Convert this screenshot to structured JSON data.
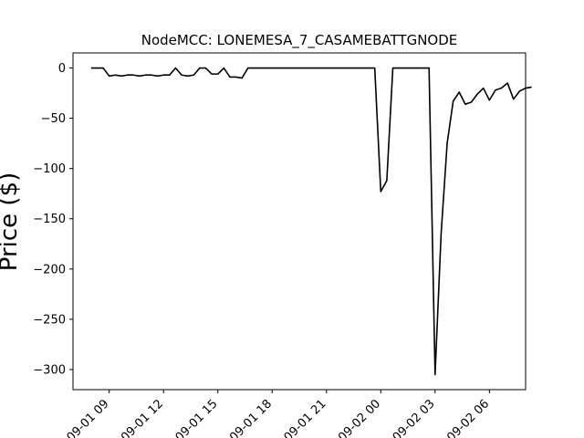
{
  "chart_data": {
    "type": "line",
    "title": "NodeMCC: LONEMESA_7_CASAMEBATTGNODE",
    "xlabel": "",
    "ylabel": "Price ($)",
    "x_tick_labels": [
      "09-01 09",
      "09-01 12",
      "09-01 15",
      "09-01 18",
      "09-01 21",
      "09-02 00",
      "09-02 03",
      "09-02 06"
    ],
    "y_ticks": [
      0,
      -50,
      -100,
      -150,
      -200,
      -250,
      -300
    ],
    "ylim": [
      -320,
      15
    ],
    "xlim": [
      "2024-09-01 07:00",
      "2024-09-02 08:00"
    ],
    "grid": false,
    "line_color": "#000000",
    "series": [
      {
        "values": [
          [
            "2024-09-01 08:00",
            0
          ],
          [
            "2024-09-01 08:20",
            0
          ],
          [
            "2024-09-01 08:40",
            0
          ],
          [
            "2024-09-01 09:00",
            -8
          ],
          [
            "2024-09-01 09:20",
            -7
          ],
          [
            "2024-09-01 09:40",
            -8
          ],
          [
            "2024-09-01 10:00",
            -7
          ],
          [
            "2024-09-01 10:20",
            -7
          ],
          [
            "2024-09-01 10:40",
            -8
          ],
          [
            "2024-09-01 11:00",
            -7
          ],
          [
            "2024-09-01 11:20",
            -7
          ],
          [
            "2024-09-01 11:40",
            -8
          ],
          [
            "2024-09-01 12:00",
            -7
          ],
          [
            "2024-09-01 12:20",
            -7
          ],
          [
            "2024-09-01 12:40",
            0
          ],
          [
            "2024-09-01 13:00",
            -7
          ],
          [
            "2024-09-01 13:20",
            -8
          ],
          [
            "2024-09-01 13:40",
            -7
          ],
          [
            "2024-09-01 14:00",
            0
          ],
          [
            "2024-09-01 14:20",
            0
          ],
          [
            "2024-09-01 14:40",
            -6
          ],
          [
            "2024-09-01 15:00",
            -6
          ],
          [
            "2024-09-01 15:20",
            0
          ],
          [
            "2024-09-01 15:40",
            -9
          ],
          [
            "2024-09-01 16:00",
            -9
          ],
          [
            "2024-09-01 16:20",
            -10
          ],
          [
            "2024-09-01 16:40",
            0
          ],
          [
            "2024-09-01 17:00",
            0
          ],
          [
            "2024-09-01 23:40",
            0
          ],
          [
            "2024-09-02 00:00",
            -123
          ],
          [
            "2024-09-02 00:20",
            -112
          ],
          [
            "2024-09-02 00:40",
            0
          ],
          [
            "2024-09-02 01:00",
            0
          ],
          [
            "2024-09-02 02:40",
            0
          ],
          [
            "2024-09-02 03:00",
            -305
          ],
          [
            "2024-09-02 03:20",
            -165
          ],
          [
            "2024-09-02 03:40",
            -75
          ],
          [
            "2024-09-02 04:00",
            -33
          ],
          [
            "2024-09-02 04:20",
            -24
          ],
          [
            "2024-09-02 04:40",
            -36
          ],
          [
            "2024-09-02 05:00",
            -34
          ],
          [
            "2024-09-02 05:20",
            -26
          ],
          [
            "2024-09-02 05:40",
            -20
          ],
          [
            "2024-09-02 06:00",
            -32
          ],
          [
            "2024-09-02 06:20",
            -22
          ],
          [
            "2024-09-02 06:40",
            -20
          ],
          [
            "2024-09-02 07:00",
            -15
          ],
          [
            "2024-09-02 07:20",
            -31
          ],
          [
            "2024-09-02 07:40",
            -23
          ],
          [
            "2024-09-02 08:00",
            -20
          ],
          [
            "2024-09-02 08:20",
            -19
          ]
        ]
      }
    ]
  }
}
